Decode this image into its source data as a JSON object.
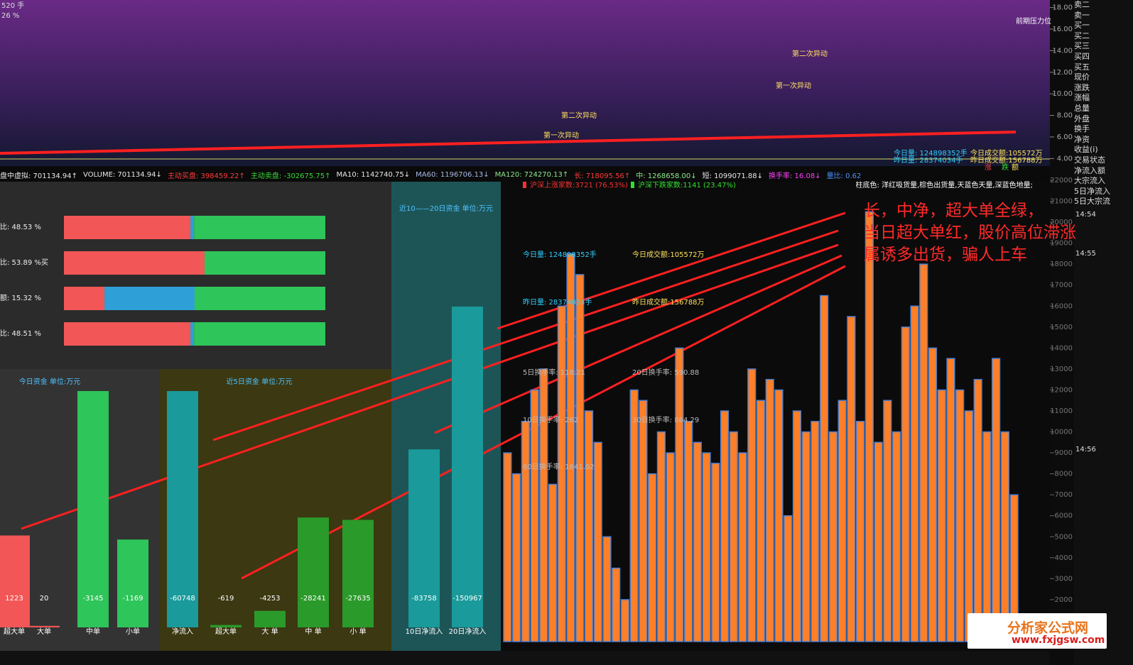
{
  "top_chart": {
    "corner_texts": [
      "520 手",
      "26 %"
    ],
    "ylim": [
      3.3,
      18.7
    ],
    "yticks": [
      {
        "value": 18,
        "label": "18.00"
      },
      {
        "value": 16,
        "label": "16.00"
      },
      {
        "value": 14,
        "label": "14.00"
      },
      {
        "value": 12,
        "label": "12.00"
      },
      {
        "value": 10,
        "label": "10.00"
      },
      {
        "value": 8,
        "label": "8.00"
      },
      {
        "value": 6,
        "label": "6.00"
      },
      {
        "value": 4,
        "label": "4.00"
      }
    ],
    "annotations": [
      "前期压力位",
      "第二次异动",
      "第一次异动",
      "第二次异动",
      "第一次异动",
      "今日量: 124898352手",
      "昨日量: 28374034手",
      "今日成交额:105572万",
      "昨日成交额:156788万",
      "涨",
      "跌",
      "额"
    ]
  },
  "status_bar": [
    {
      "text": "盘中虚拟: 701134.94↑",
      "color": "#e8e8e8"
    },
    {
      "text": "VOLUME: 701134.94↓",
      "color": "#e8e8e8"
    },
    {
      "text": "主动买盘: 398459.22↑",
      "color": "#ff3b3b"
    },
    {
      "text": "主动卖盘: -302675.75↑",
      "color": "#38d838"
    },
    {
      "text": "MA10: 1142740.75↓",
      "color": "#e8e8e8"
    },
    {
      "text": "MA60: 1196706.13↓",
      "color": "#a8b8e8"
    },
    {
      "text": "MA120: 724270.13↑",
      "color": "#8fe88f"
    },
    {
      "text": "长: 718095.56↑",
      "color": "#ff3b3b"
    },
    {
      "text": "中: 1268658.00↓",
      "color": "#8fe88f"
    },
    {
      "text": "短: 1099071.88↓",
      "color": "#e8e8e8"
    },
    {
      "text": "换手率: 16.08↓",
      "color": "#ff40ff"
    },
    {
      "text": "量比: 0.62",
      "color": "#4a90ff"
    }
  ],
  "ratio_panel": {
    "rows": [
      {
        "label": "比: 48.53 %",
        "segments": [
          {
            "value": 48.4,
            "color": "#f25656"
          },
          {
            "value": 1.4,
            "color": "#2f9fd8"
          },
          {
            "value": 50.2,
            "color": "#2ec55a"
          }
        ]
      },
      {
        "label": "比: 53.89 %买",
        "segments": [
          {
            "value": 53.8,
            "color": "#f25656"
          },
          {
            "value": 46.2,
            "color": "#2ec55a"
          }
        ]
      },
      {
        "label": "额: 15.32 %",
        "segments": [
          {
            "value": 15.5,
            "color": "#f25656"
          },
          {
            "value": 34.5,
            "color": "#2f9fd8"
          },
          {
            "value": 50,
            "color": "#2ec55a"
          }
        ]
      },
      {
        "label": "比: 48.51 %",
        "segments": [
          {
            "value": 48.4,
            "color": "#f25656"
          },
          {
            "value": 1.4,
            "color": "#2f9fd8"
          },
          {
            "value": 50.2,
            "color": "#2ec55a"
          }
        ]
      }
    ]
  },
  "chart_data": [
    {
      "type": "bar",
      "title": "今日资金  单位:万元",
      "categories": [
        "超大单",
        "大单",
        "中单",
        "小单"
      ],
      "values": [
        1223,
        20,
        -3145,
        -1169
      ],
      "colors": [
        "#f25656",
        "#f25656",
        "#2ec55a",
        "#2ec55a"
      ]
    },
    {
      "type": "bar",
      "title": "近5日资金  单位:万元",
      "categories": [
        "净流入",
        "超大单",
        "大 单",
        "中 单",
        "小 单"
      ],
      "values": [
        -60748,
        -619,
        -4253,
        -28241,
        -27635
      ],
      "colors": [
        "#1a9a9a",
        "#2a9a2a",
        "#2a9a2a",
        "#2a9a2a",
        "#2a9a2a"
      ]
    },
    {
      "type": "bar",
      "title": "近10——20日资金  单位:万元",
      "categories": [
        "10日净流入",
        "20日净流入"
      ],
      "values": [
        -83758,
        -150967
      ],
      "colors": [
        "#1a9a9a",
        "#1a9a9a"
      ]
    },
    {
      "type": "volume",
      "color": "#ff7f27",
      "edge": "#4a7fd0",
      "ylim": [
        0,
        22000
      ],
      "yticks": [
        2000,
        3000,
        4000,
        5000,
        6000,
        7000,
        8000,
        9000,
        10000,
        11000,
        12000,
        13000,
        14000,
        15000,
        16000,
        17000,
        18000,
        19000,
        20000,
        21000,
        22000
      ],
      "values": [
        9000,
        8000,
        10500,
        12000,
        13000,
        7500,
        16000,
        18500,
        17500,
        11000,
        9500,
        5000,
        3500,
        2000,
        12000,
        11500,
        8000,
        10000,
        9000,
        14000,
        10500,
        9500,
        9000,
        8500,
        11000,
        10000,
        9000,
        13000,
        11500,
        12500,
        12000,
        6000,
        11000,
        10000,
        10500,
        16500,
        10000,
        11500,
        15500,
        10500,
        20500,
        9500,
        11500,
        10000,
        15000,
        16000,
        18000,
        14000,
        12000,
        13500,
        12000,
        11000,
        12500,
        10000,
        13500,
        10000,
        7000
      ],
      "legend": [
        {
          "text": "沪深上涨家数:3721 (76.53%)",
          "color": "#ff3030"
        },
        {
          "text": "沪深下跌家数:1141 (23.47%)",
          "color": "#30e030"
        }
      ],
      "note": "柱底色: 洋红吸货量,棕色出货量,天蓝色天量,深蓝色地量;",
      "texts": [
        "今日量: 124898352手",
        "今日成交额:105572万",
        "昨日量: 28374034手",
        "昨日成交额:156788万",
        "5日换手率: 118.21",
        "20日换手率: 590.88",
        "10日换手率: 262",
        "30日换手率: 864.29",
        "60日换手率: 1641.02"
      ],
      "times": [
        "14:54",
        "14:55",
        "14:56"
      ]
    }
  ],
  "sidebar": [
    "卖二",
    "卖一",
    "买一",
    "买二",
    "买三",
    "买四",
    "买五",
    "现价",
    "涨跌",
    "涨幅",
    "总量",
    "外盘",
    "换手",
    "净资",
    "收益(i)",
    "交易状态",
    "净流入额",
    "大宗流入",
    "5日净流入",
    "5日大宗流"
  ],
  "annotation": [
    "长，中净，超大单全绿，",
    "当日超大单红，股价高位滞涨",
    "属诱多出货，骗人上车"
  ],
  "logo": {
    "name": "分析家公式网",
    "url": "www.fxjgsw.com"
  }
}
